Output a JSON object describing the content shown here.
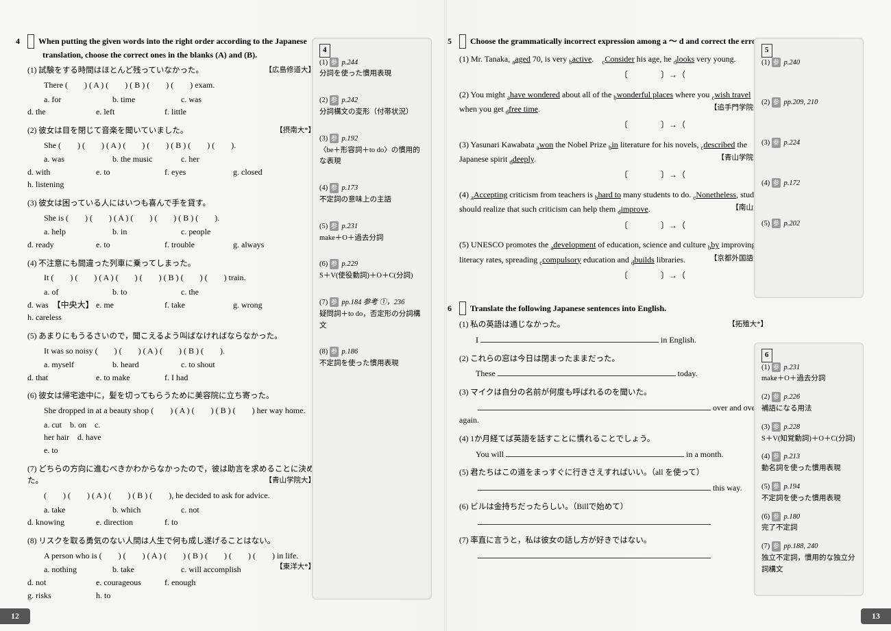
{
  "left": {
    "qnum": "4",
    "head": "When putting the given words into the right order according to the Japanese translation, choose the correct ones in the blanks (A) and (B).",
    "items": [
      {
        "n": "(1)",
        "jp": "試験をする時間はほとんど残っていなかった。",
        "src": "【広島修道大】",
        "eng": "There (　　) ( A ) (　　) ( B ) (　　) (　　) exam.",
        "ch": [
          "a. for",
          "b. time",
          "c. was",
          "d. the",
          "e. left",
          "f. little"
        ]
      },
      {
        "n": "(2)",
        "jp": "彼女は目を閉じて音楽を聞いていました。",
        "src": "【摂南大*】",
        "eng": "She (　　) (　　) ( A ) (　　) (　　) ( B ) (　　) (　　).",
        "ch": [
          "a. was",
          "b. the music",
          "c. her",
          "d. with",
          "e. to",
          "f. eyes",
          "g. closed",
          "h. listening"
        ]
      },
      {
        "n": "(3)",
        "jp": "彼女は困っている人にはいつも喜んで手を貸す。",
        "src": "",
        "eng": "She is (　　) (　　) ( A ) (　　) (　　) ( B ) (　　).",
        "ch": [
          "a. help",
          "b. in",
          "c. people",
          "d. ready",
          "e. to",
          "f. trouble",
          "g. always"
        ]
      },
      {
        "n": "(4)",
        "jp": "不注意にも間違った列車に乗ってしまった。",
        "src": "",
        "eng": "It (　　) (　　) ( A ) (　　) (　　) ( B ) (　　) (　　) train.",
        "ch": [
          "a. of",
          "b. to",
          "c. the",
          "d. was　【中央大】",
          "e. me",
          "f. take",
          "g. wrong",
          "h. careless"
        ]
      },
      {
        "n": "(5)",
        "jp": "あまりにもうるさいので，聞こえるよう叫ばなければならなかった。",
        "src": "",
        "eng": "It was so noisy (　　) (　　) ( A ) (　　) ( B ) (　　).",
        "ch": [
          "a. myself",
          "b. heard",
          "c. to shout",
          "d. that",
          "e. to make",
          "f. I had"
        ]
      },
      {
        "n": "(6)",
        "jp": "彼女は帰宅途中に，髪を切ってもらうために美容院に立ち寄った。",
        "src": "",
        "eng": "She dropped in at a beauty shop (　　) ( A ) (　　) ( B ) (　　) her way home.",
        "ch": [
          "a. cut　b. on　c. her hair　d. have　e. to"
        ]
      },
      {
        "n": "(7)",
        "jp": "どちらの方向に進むべきかわからなかったので，彼は助言を求めることに決めた。",
        "src": "【青山学院大】",
        "eng": "(　　) (　　) ( A ) (　　) ( B ) (　　), he decided to ask for advice.",
        "ch": [
          "a. take",
          "b. which",
          "c. not",
          "d. knowing",
          "e. direction",
          "f. to"
        ]
      },
      {
        "n": "(8)",
        "jp": "リスクを取る勇気のない人間は人生で何も成し遂げることはない。",
        "src": "",
        "eng": "A person who is (　　) (　　) ( A ) (　　) ( B ) (　　) (　　) (　　) in life.",
        "src2": "【東洋大*】",
        "ch": [
          "a. nothing",
          "b. take",
          "c. will accomplish",
          "d. not",
          "e. courageous",
          "f. enough",
          "g. risks",
          "h. to"
        ]
      }
    ],
    "side": {
      "qnum": "4",
      "items": [
        {
          "n": "(1)",
          "p": "p.244",
          "t": "分詞を使った慣用表現"
        },
        {
          "n": "(2)",
          "p": "p.242",
          "t": "分詞構文の変形（付帯状況）"
        },
        {
          "n": "(3)",
          "p": "p.192",
          "t": "〈be＋形容詞＋to do〉の慣用的な表現"
        },
        {
          "n": "(4)",
          "p": "p.173",
          "t": "不定詞の意味上の主語"
        },
        {
          "n": "(5)",
          "p": "p.231",
          "t": "make＋O＋過去分詞"
        },
        {
          "n": "(6)",
          "p": "p.229",
          "t": "S＋V(使役動詞)＋O＋C(分詞)"
        },
        {
          "n": "(7)",
          "p": "pp.184 参考 ①，236",
          "t": "疑問詞＋to do，否定形の分詞構文"
        },
        {
          "n": "(8)",
          "p": "p.186",
          "t": "不定詞を使った慣用表現"
        }
      ]
    },
    "pagenum": "12"
  },
  "right": {
    "q5": {
      "qnum": "5",
      "head": "Choose the grammatically incorrect expression among a ～ d and correct the error.",
      "items": [
        {
          "n": "(1)",
          "t": "Mr. Tanaka, <sub>a</sub><u>aged</u> 70, is very <sub>b</sub><u>active</u>.　<sub>c</sub><u>Consider</u> his age, he <sub>d</sub><u>looks</u> very young."
        },
        {
          "n": "(2)",
          "t": "You might <sub>a</sub><u>have wondered</u> about all of the <sub>b</sub><u>wonderful places</u> where you <sub>c</sub><u>wish travel</u> when you get <sub>d</sub><u>free time</u>.",
          "src": "【追手門学院大】"
        },
        {
          "n": "(3)",
          "t": "Yasunari Kawabata <sub>a</sub><u>won</u> the Nobel Prize <sub>b</sub><u>in</u> literature for his novels, <sub>c</sub><u>described</u> the Japanese spirit <sub>d</sub><u>deeply</u>.",
          "src": "【青山学院大】"
        },
        {
          "n": "(4)",
          "t": "<sub>a</sub><u>Accepting</u> criticism from teachers is <sub>b</sub><u>hard to</u> many students to do. <sub>c</sub><u>Nonetheless</u>, students should realize that such criticism can help them <sub>d</sub><u>improve</u>.",
          "src": "【南山大】"
        },
        {
          "n": "(5)",
          "t": "UNESCO promotes the <sub>a</sub><u>development</u> of education, science and culture <sub>b</sub><u>by</u> improving literacy rates, spreading <sub>c</sub><u>compulsory</u> education and <sub>d</sub><u>builds</u> libraries.",
          "src": "【京都外国語大】"
        }
      ]
    },
    "q6": {
      "qnum": "6",
      "head": "Translate the following Japanese sentences into English.",
      "items": [
        {
          "n": "(1)",
          "jp": "私の英語は通じなかった。",
          "src": "【拓殖大*】",
          "pre": "I",
          "post": "in English."
        },
        {
          "n": "(2)",
          "jp": "これらの窓は今日は閉まったままだった。",
          "pre": "These",
          "post": "today."
        },
        {
          "n": "(3)",
          "jp": "マイクは自分の名前が何度も呼ばれるのを聞いた。",
          "pre": "",
          "post": "over and over again."
        },
        {
          "n": "(4)",
          "jp": "1か月経てば英語を話すことに慣れることでしょう。",
          "pre": "You will",
          "post": "in a month."
        },
        {
          "n": "(5)",
          "jp": "君たちはこの道をまっすぐに行きさえすればいい。（all を使って）",
          "pre": "",
          "post": "this way."
        },
        {
          "n": "(6)",
          "jp": "ビルは金持ちだったらしい。（Billで始めて）",
          "pre": "",
          "post": ""
        },
        {
          "n": "(7)",
          "jp": "率直に言うと，私は彼女の話し方が好きではない。",
          "pre": "",
          "post": ""
        }
      ]
    },
    "side5": {
      "qnum": "5",
      "items": [
        {
          "n": "(1)",
          "p": "p.240"
        },
        {
          "n": "(2)",
          "p": "pp.209, 210"
        },
        {
          "n": "(3)",
          "p": "p.224"
        },
        {
          "n": "(4)",
          "p": "p.172"
        },
        {
          "n": "(5)",
          "p": "p.202"
        }
      ]
    },
    "side6": {
      "qnum": "6",
      "items": [
        {
          "n": "(1)",
          "p": "p.231",
          "t": "make＋O＋過去分詞"
        },
        {
          "n": "(2)",
          "p": "p.226",
          "t": "補語になる用法"
        },
        {
          "n": "(3)",
          "p": "p.228",
          "t": "S＋V(知覚動詞)＋O＋C(分詞)"
        },
        {
          "n": "(4)",
          "p": "p.213",
          "t": "動名詞を使った慣用表現"
        },
        {
          "n": "(5)",
          "p": "p.194",
          "t": "不定詞を使った慣用表現"
        },
        {
          "n": "(6)",
          "p": "p.180",
          "t": "完了不定詞"
        },
        {
          "n": "(7)",
          "p": "pp.188, 240",
          "t": "独立不定詞，慣用的な独立分詞構文"
        }
      ]
    },
    "pagenum": "13"
  },
  "bracket": "〔　　　　〕→（　　　　　　　　　）"
}
